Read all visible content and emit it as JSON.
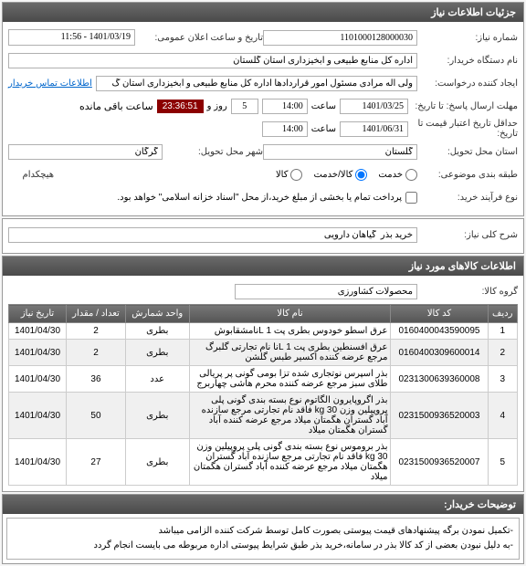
{
  "panel1": {
    "title": "جزئیات اطلاعات نیاز",
    "need_number_lbl": "شماره نیاز:",
    "need_number": "1101000128000030",
    "pub_date_lbl": "تاریخ و ساعت اعلان عمومی:",
    "pub_date": "1401/03/19 - 11:56",
    "buyer_lbl": "نام دستگاه خریدار:",
    "buyer": "اداره کل منابع طبیعی و آبخیزداری استان گلستان",
    "requester_lbl": "ایجاد کننده درخواست:",
    "requester": "ولی اله مرادی مسئول امور قراردادها اداره کل منابع طبیعی و آبخیزداری استان گ",
    "contact_link": "اطلاعات تماس خریدار",
    "deadline_reply_lbl": "مهلت ارسال پاسخ: تا تاریخ:",
    "deadline_reply_date": "1401/03/25",
    "time_lbl": "ساعت",
    "deadline_reply_time": "14:00",
    "days_lbl": "روز و",
    "days_val": "5",
    "countdown": "23:36:51",
    "remain_lbl": "ساعت باقی مانده",
    "deadline_valid_lbl": "حداقل تاریخ اعتبار قیمت تا تاریخ:",
    "deadline_valid_date": "1401/06/31",
    "deadline_valid_time": "14:00",
    "province_lbl": "استان محل تحویل:",
    "province": "گلستان",
    "city_lbl": "شهر محل تحویل:",
    "city": "گرگان",
    "packaging_lbl": "طبقه بندی موضوعی:",
    "radio_service": "خدمت",
    "radio_goods_service": "کالا/خدمت",
    "radio_goods": "کالا",
    "nothing_lbl": "هیچکدام",
    "process_lbl": "نوع فرآیند خرید:",
    "payment_note": "پرداخت تمام یا بخشی از مبلغ خرید،از محل \"اسناد خزانه اسلامی\" خواهد بود."
  },
  "panel2": {
    "title_lbl": "شرح کلی نیاز:",
    "title_val": "خرید بذر  گیاهان دارویی"
  },
  "panel3": {
    "title": "اطلاعات کالاهای مورد نیاز",
    "group_lbl": "گروه کالا:",
    "group_val": "محصولات کشاورزی",
    "columns": [
      "ردیف",
      "کد کالا",
      "نام کالا",
      "واحد شمارش",
      "تعداد / مقدار",
      "تاریخ نیاز"
    ],
    "rows": [
      [
        "1",
        "0160400043590095",
        "عرق اسطو خودوس بطری پت 1 Lنامشقابوش",
        "بطری",
        "2",
        "1401/04/30"
      ],
      [
        "2",
        "0160400309600014",
        "عرق افسنطین بطری پت 1 Lنا نام تجارتی گلبرگ مرجع عرضه کننده اکسیر طبس گلشن",
        "بطری",
        "2",
        "1401/04/30"
      ],
      [
        "3",
        "0231300639360008",
        "بذر اسپرس نوتجاری شده تزا بومی گونی پر پریالی طلای سبز مرجع عرضه کننده محرم هاشی چهاربرج",
        "عدد",
        "36",
        "1401/04/30"
      ],
      [
        "4",
        "0231500936520003",
        "بذر اگروپایرون الگاتوم نوع بسته بندی گونی پلی پروپیلین وزن 30 kg فاقد نام تجارتی مرجع سازنده آباد گستران هگمتان میلاد مرجع عرضه کننده آباد گستران هگمتان میلاد",
        "بطری",
        "50",
        "1401/04/30"
      ],
      [
        "5",
        "0231500936520007",
        "بذر بروموس نوع بسته بندی گونی پلی پروپیلین وزن 30 kg فاقد نام تجارتی مرجع سازنده آباد گستران هگمتان میلاد مرجع عرضه کننده آباد گستران هگمتان میلاد",
        "بطری",
        "27",
        "1401/04/30"
      ]
    ]
  },
  "panel4": {
    "title": "توضیحات خریدار:",
    "text": "-تکمیل نمودن برگه پیشنهادهای قیمت پیوستی بصورت کامل توسط شرکت کننده الزامی میباشد\n-به دلیل نبودن بعضی از کد کالا بذر در سامانه،خرید بذر طبق شرایط پیوستی اداره مربوطه می بایست انجام گردد"
  }
}
